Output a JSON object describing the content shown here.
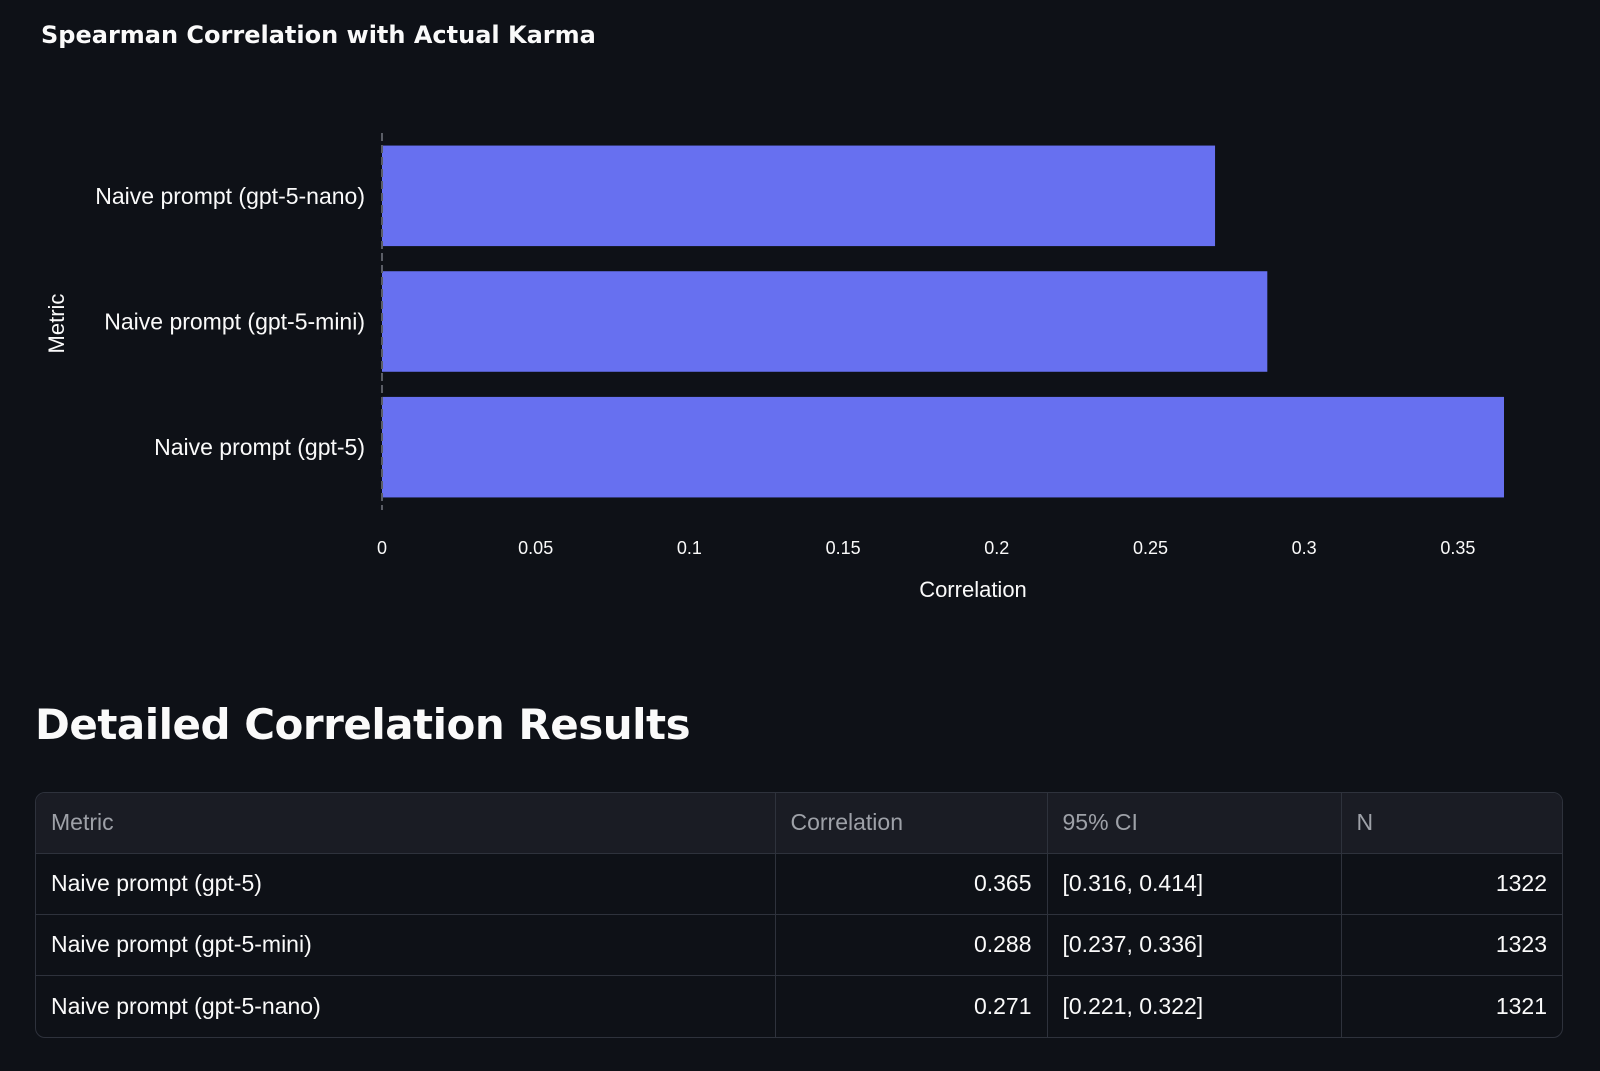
{
  "chart_data": {
    "type": "bar",
    "orientation": "horizontal",
    "title": "Spearman Correlation with Actual Karma",
    "xlabel": "Correlation",
    "ylabel": "Metric",
    "categories": [
      "Naive prompt (gpt-5-nano)",
      "Naive prompt (gpt-5-mini)",
      "Naive prompt (gpt-5)"
    ],
    "values": [
      0.271,
      0.288,
      0.365
    ],
    "xlim": [
      0,
      0.365
    ],
    "xticks": [
      0,
      0.05,
      0.1,
      0.15,
      0.2,
      0.25,
      0.3,
      0.35
    ],
    "xtick_labels": [
      "0",
      "0.05",
      "0.1",
      "0.15",
      "0.2",
      "0.25",
      "0.3",
      "0.35"
    ],
    "bar_color": "#6770f0",
    "grid": false,
    "legend": "none"
  },
  "colors": {
    "background": "#0e1117",
    "bar": "#6770f0",
    "table_header_bg": "#1a1c24",
    "border": "#2e323c",
    "header_text": "#9ea1a8",
    "text": "#fafafa"
  },
  "section": {
    "heading": "Detailed Correlation Results"
  },
  "table": {
    "columns": [
      "Metric",
      "Correlation",
      "95% CI",
      "N"
    ],
    "rows": [
      {
        "metric": "Naive prompt (gpt-5)",
        "correlation": "0.365",
        "ci": "[0.316, 0.414]",
        "n": "1322"
      },
      {
        "metric": "Naive prompt (gpt-5-mini)",
        "correlation": "0.288",
        "ci": "[0.237, 0.336]",
        "n": "1323"
      },
      {
        "metric": "Naive prompt (gpt-5-nano)",
        "correlation": "0.271",
        "ci": "[0.221, 0.322]",
        "n": "1321"
      }
    ]
  }
}
